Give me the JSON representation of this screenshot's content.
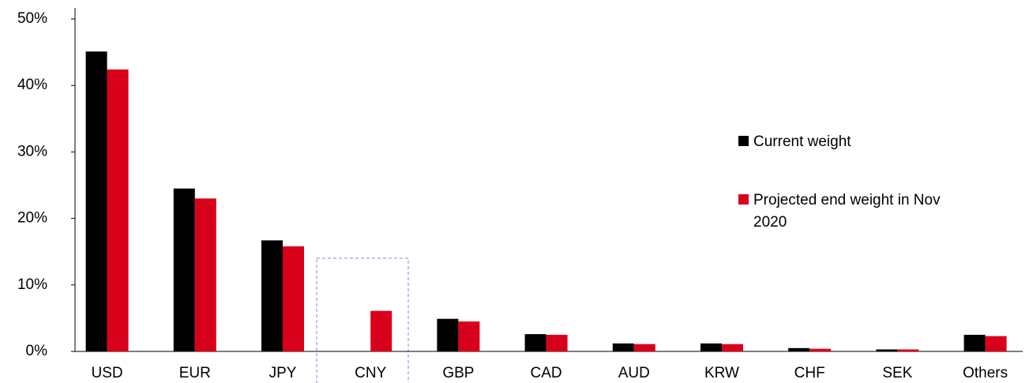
{
  "chart_data": {
    "type": "bar",
    "categories": [
      "USD",
      "EUR",
      "JPY",
      "CNY",
      "GBP",
      "CAD",
      "AUD",
      "KRW",
      "CHF",
      "SEK",
      "Others"
    ],
    "series": [
      {
        "name": "Current weight",
        "color": "#000000",
        "values": [
          45.1,
          24.5,
          16.7,
          0,
          4.9,
          2.6,
          1.2,
          1.2,
          0.5,
          0.3,
          2.5
        ]
      },
      {
        "name": "Projected end weight in Nov 2020",
        "color": "#d9001b",
        "values": [
          42.4,
          23.0,
          15.8,
          6.1,
          4.5,
          2.5,
          1.1,
          1.1,
          0.4,
          0.3,
          2.3
        ]
      }
    ],
    "ylim": [
      0,
      50
    ],
    "yticks": [
      {
        "value": 0,
        "label": "0%"
      },
      {
        "value": 10,
        "label": "10%"
      },
      {
        "value": 20,
        "label": "20%"
      },
      {
        "value": 30,
        "label": "30%"
      },
      {
        "value": 40,
        "label": "40%"
      },
      {
        "value": 50,
        "label": "50%"
      }
    ],
    "grid": false
  }
}
